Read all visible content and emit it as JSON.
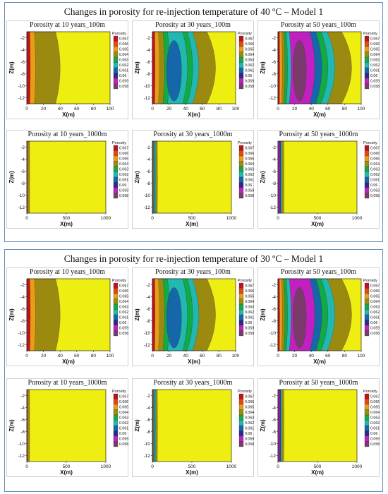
{
  "sections": [
    {
      "title": "Changes in porosity for re-injection temperature of 40 ºC – Model 1",
      "panels": [
        {
          "title": "Porosity at 10 years_100m"
        },
        {
          "title": "Porosity at 30 years_100m"
        },
        {
          "title": "Porosity at 50 years_100m"
        },
        {
          "title": "Porosity at 10 years_1000m"
        },
        {
          "title": "Porosity at 30 years_1000m"
        },
        {
          "title": "Porosity at 50 years_1000m"
        }
      ]
    },
    {
      "title": "Changes in porosity for re-injection temperature of 30 ºC – Model 1",
      "panels": [
        {
          "title": "Porosity at 10 years_100m"
        },
        {
          "title": "Porosity at 30 years_100m"
        },
        {
          "title": "Porosity at 50 years_100m"
        },
        {
          "title": "Porosity at 10 years_1000m"
        },
        {
          "title": "Porosity at 30 years_1000m"
        },
        {
          "title": "Porosity at 50 years_1000m"
        }
      ]
    }
  ],
  "chart_data": {
    "type": "heatmap",
    "xlabel": "X(m)",
    "ylabel": "Z(m)",
    "colorbar_title": "Porosity",
    "colorbar_levels": [
      0.067,
      0.066,
      0.065,
      0.064,
      0.063,
      0.062,
      0.061,
      0.06,
      0.059,
      0.058
    ],
    "colorbar_colors": [
      "#c0101a",
      "#e04a10",
      "#ea9c16",
      "#9c8a10",
      "#11aa44",
      "#22b8b0",
      "#1666aa",
      "#2a2a88",
      "#c020c0",
      "#7a3a6a"
    ],
    "background_color": "#eeee10",
    "ylim": [
      -13,
      -1
    ],
    "yticks": [
      -2,
      -4,
      -6,
      -8,
      -10,
      -12
    ],
    "panels_100m": {
      "xlim": [
        0,
        100
      ],
      "xticks": [
        0,
        20,
        40,
        60,
        80,
        100
      ],
      "zones_by_year": {
        "10": [
          {
            "porosity": 0.067,
            "x_extent": 4
          },
          {
            "porosity": 0.065,
            "x_extent": 10
          },
          {
            "porosity": 0.064,
            "x_extent": 38
          }
        ],
        "30": [
          {
            "porosity": 0.067,
            "x_extent": 3
          },
          {
            "porosity": 0.065,
            "x_extent": 8
          },
          {
            "porosity": 0.064,
            "x_extent": 14
          },
          {
            "porosity": 0.063,
            "x_extent": 20
          },
          {
            "porosity": 0.062,
            "x_extent": 40
          },
          {
            "porosity": 0.063,
            "x_extent": 46
          },
          {
            "porosity": 0.062,
            "x_extent": 53
          },
          {
            "porosity": 0.064,
            "x_extent": 72
          }
        ],
        "50": [
          {
            "porosity": 0.067,
            "x_extent": 2
          },
          {
            "porosity": 0.065,
            "x_extent": 5
          },
          {
            "porosity": 0.064,
            "x_extent": 8
          },
          {
            "porosity": 0.063,
            "x_extent": 11
          },
          {
            "porosity": 0.062,
            "x_extent": 15
          },
          {
            "porosity": 0.059,
            "x_extent": 42
          },
          {
            "porosity": 0.061,
            "x_extent": 50
          },
          {
            "porosity": 0.063,
            "x_extent": 57
          },
          {
            "porosity": 0.062,
            "x_extent": 65
          },
          {
            "porosity": 0.064,
            "x_extent": 84
          }
        ]
      },
      "core_by_year": {
        "10": null,
        "30": {
          "porosity": 0.061,
          "x_center": 26,
          "half_width": 9
        },
        "50": {
          "porosity": 0.058,
          "x_center": 26,
          "half_width": 8
        }
      }
    },
    "panels_1000m": {
      "xlim": [
        0,
        1000
      ],
      "xticks": [
        0,
        500,
        1000
      ],
      "zones_by_year": {
        "10": [
          {
            "porosity": 0.067,
            "x_extent": 8
          },
          {
            "porosity": 0.065,
            "x_extent": 16
          },
          {
            "porosity": 0.064,
            "x_extent": 36
          }
        ],
        "30": [
          {
            "porosity": 0.067,
            "x_extent": 6
          },
          {
            "porosity": 0.064,
            "x_extent": 14
          },
          {
            "porosity": 0.061,
            "x_extent": 26
          },
          {
            "porosity": 0.062,
            "x_extent": 42
          },
          {
            "porosity": 0.064,
            "x_extent": 64
          }
        ],
        "50": [
          {
            "porosity": 0.067,
            "x_extent": 5
          },
          {
            "porosity": 0.059,
            "x_extent": 22
          },
          {
            "porosity": 0.06,
            "x_extent": 34
          },
          {
            "porosity": 0.062,
            "x_extent": 50
          },
          {
            "porosity": 0.064,
            "x_extent": 75
          }
        ]
      }
    }
  }
}
